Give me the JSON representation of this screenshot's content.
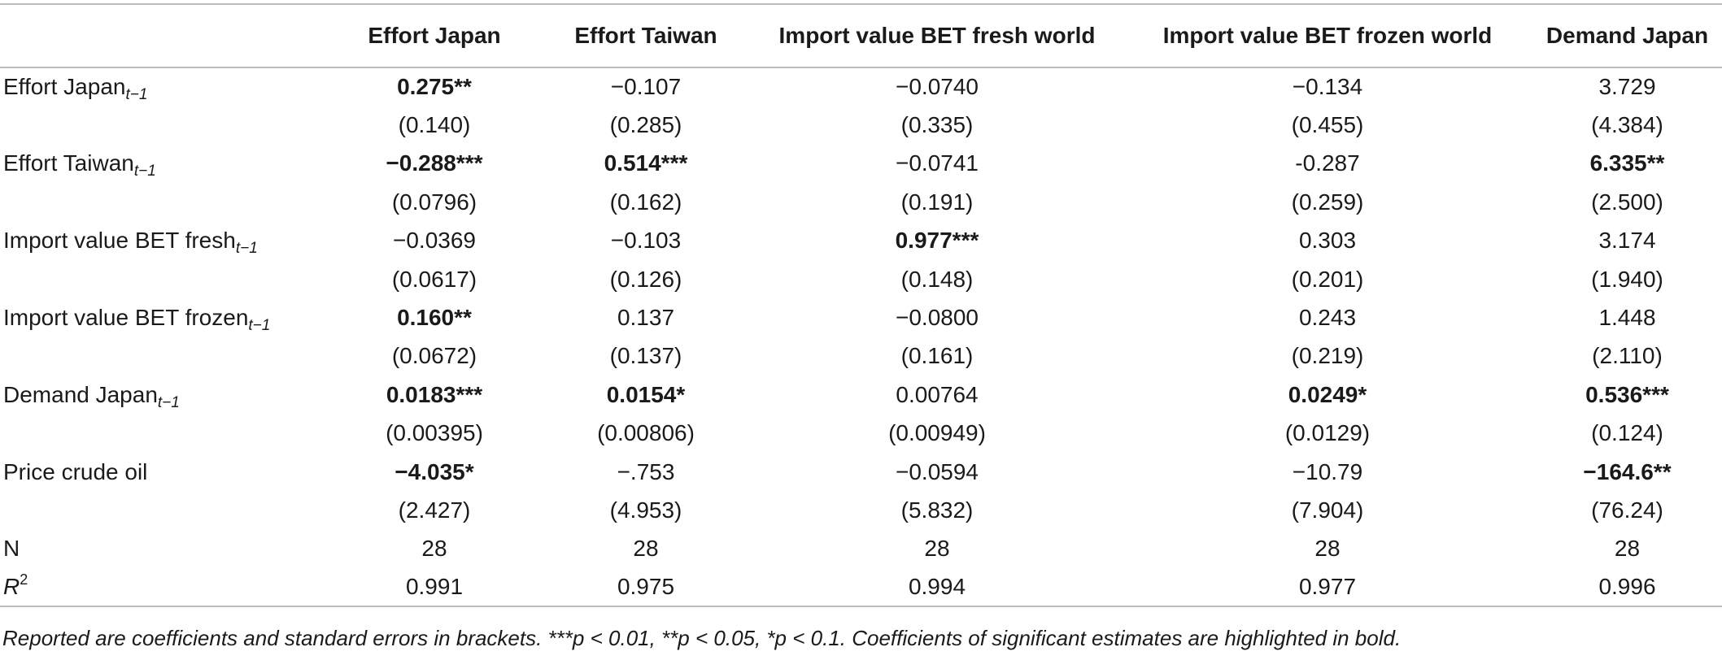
{
  "table": {
    "columns": [
      "",
      "Effort Japan",
      "Effort Taiwan",
      "Import value BET fresh world",
      "Import value BET frozen world",
      "Demand Japan"
    ],
    "rows": [
      {
        "label": "Effort Japan",
        "sub": "t−1",
        "sup": "",
        "cells": [
          {
            "v": "0.275**",
            "bold": true
          },
          {
            "v": "−0.107",
            "bold": false
          },
          {
            "v": "−0.0740",
            "bold": false
          },
          {
            "v": "−0.134",
            "bold": false
          },
          {
            "v": "3.729",
            "bold": false
          }
        ]
      },
      {
        "label": "",
        "sub": "",
        "sup": "",
        "cells": [
          {
            "v": "(0.140)",
            "bold": false
          },
          {
            "v": "(0.285)",
            "bold": false
          },
          {
            "v": "(0.335)",
            "bold": false
          },
          {
            "v": "(0.455)",
            "bold": false
          },
          {
            "v": "(4.384)",
            "bold": false
          }
        ]
      },
      {
        "label": "Effort Taiwan",
        "sub": "t−1",
        "sup": "",
        "cells": [
          {
            "v": "−0.288***",
            "bold": true
          },
          {
            "v": "0.514***",
            "bold": true
          },
          {
            "v": "−0.0741",
            "bold": false
          },
          {
            "v": "-0.287",
            "bold": false
          },
          {
            "v": "6.335**",
            "bold": true
          }
        ]
      },
      {
        "label": "",
        "sub": "",
        "sup": "",
        "cells": [
          {
            "v": "(0.0796)",
            "bold": false
          },
          {
            "v": "(0.162)",
            "bold": false
          },
          {
            "v": "(0.191)",
            "bold": false
          },
          {
            "v": "(0.259)",
            "bold": false
          },
          {
            "v": "(2.500)",
            "bold": false
          }
        ]
      },
      {
        "label": "Import value BET fresh",
        "sub": "t−1",
        "sup": "",
        "cells": [
          {
            "v": "−0.0369",
            "bold": false
          },
          {
            "v": "−0.103",
            "bold": false
          },
          {
            "v": "0.977***",
            "bold": true
          },
          {
            "v": "0.303",
            "bold": false
          },
          {
            "v": "3.174",
            "bold": false
          }
        ]
      },
      {
        "label": "",
        "sub": "",
        "sup": "",
        "cells": [
          {
            "v": "(0.0617)",
            "bold": false
          },
          {
            "v": "(0.126)",
            "bold": false
          },
          {
            "v": "(0.148)",
            "bold": false
          },
          {
            "v": "(0.201)",
            "bold": false
          },
          {
            "v": "(1.940)",
            "bold": false
          }
        ]
      },
      {
        "label": "Import value BET frozen",
        "sub": "t−1",
        "sup": "",
        "cells": [
          {
            "v": "0.160**",
            "bold": true
          },
          {
            "v": "0.137",
            "bold": false
          },
          {
            "v": "−0.0800",
            "bold": false
          },
          {
            "v": "0.243",
            "bold": false
          },
          {
            "v": "1.448",
            "bold": false
          }
        ]
      },
      {
        "label": "",
        "sub": "",
        "sup": "",
        "cells": [
          {
            "v": "(0.0672)",
            "bold": false
          },
          {
            "v": "(0.137)",
            "bold": false
          },
          {
            "v": "(0.161)",
            "bold": false
          },
          {
            "v": "(0.219)",
            "bold": false
          },
          {
            "v": "(2.110)",
            "bold": false
          }
        ]
      },
      {
        "label": "Demand Japan",
        "sub": "t−1",
        "sup": "",
        "cells": [
          {
            "v": "0.0183***",
            "bold": true
          },
          {
            "v": "0.0154*",
            "bold": true
          },
          {
            "v": "0.00764",
            "bold": false
          },
          {
            "v": "0.0249*",
            "bold": true
          },
          {
            "v": "0.536***",
            "bold": true
          }
        ]
      },
      {
        "label": "",
        "sub": "",
        "sup": "",
        "cells": [
          {
            "v": "(0.00395)",
            "bold": false
          },
          {
            "v": "(0.00806)",
            "bold": false
          },
          {
            "v": "(0.00949)",
            "bold": false
          },
          {
            "v": "(0.0129)",
            "bold": false
          },
          {
            "v": "(0.124)",
            "bold": false
          }
        ]
      },
      {
        "label": "Price crude oil",
        "sub": "",
        "sup": "",
        "cells": [
          {
            "v": "−4.035*",
            "bold": true
          },
          {
            "v": "−.753",
            "bold": false
          },
          {
            "v": "−0.0594",
            "bold": false
          },
          {
            "v": "−10.79",
            "bold": false
          },
          {
            "v": "−164.6**",
            "bold": true
          }
        ]
      },
      {
        "label": "",
        "sub": "",
        "sup": "",
        "cells": [
          {
            "v": "(2.427)",
            "bold": false
          },
          {
            "v": "(4.953)",
            "bold": false
          },
          {
            "v": "(5.832)",
            "bold": false
          },
          {
            "v": "(7.904)",
            "bold": false
          },
          {
            "v": "(76.24)",
            "bold": false
          }
        ]
      },
      {
        "label": "N",
        "sub": "",
        "sup": "",
        "cells": [
          {
            "v": "28",
            "bold": false
          },
          {
            "v": "28",
            "bold": false
          },
          {
            "v": "28",
            "bold": false
          },
          {
            "v": "28",
            "bold": false
          },
          {
            "v": "28",
            "bold": false
          }
        ]
      },
      {
        "label": "R",
        "sub": "",
        "sup": "2",
        "italic": true,
        "cells": [
          {
            "v": "0.991",
            "bold": false
          },
          {
            "v": "0.975",
            "bold": false
          },
          {
            "v": "0.994",
            "bold": false
          },
          {
            "v": "0.977",
            "bold": false
          },
          {
            "v": "0.996",
            "bold": false
          }
        ]
      }
    ]
  },
  "note": "Reported are coefficients and standard errors in brackets. ***p < 0.01, **p < 0.05, *p < 0.1. Coefficients of significant estimates are highlighted in bold."
}
